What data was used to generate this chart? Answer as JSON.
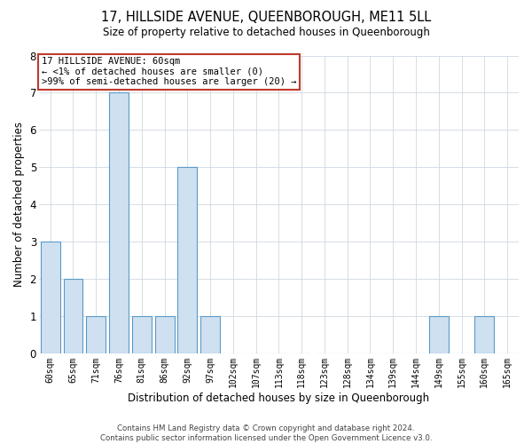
{
  "title": "17, HILLSIDE AVENUE, QUEENBOROUGH, ME11 5LL",
  "subtitle": "Size of property relative to detached houses in Queenborough",
  "xlabel": "Distribution of detached houses by size in Queenborough",
  "ylabel": "Number of detached properties",
  "categories": [
    "60sqm",
    "65sqm",
    "71sqm",
    "76sqm",
    "81sqm",
    "86sqm",
    "92sqm",
    "97sqm",
    "102sqm",
    "107sqm",
    "113sqm",
    "118sqm",
    "123sqm",
    "128sqm",
    "134sqm",
    "139sqm",
    "144sqm",
    "149sqm",
    "155sqm",
    "160sqm",
    "165sqm"
  ],
  "values": [
    3,
    2,
    1,
    7,
    1,
    1,
    5,
    1,
    0,
    0,
    0,
    0,
    0,
    0,
    0,
    0,
    0,
    1,
    0,
    1,
    0
  ],
  "bar_color": "#cfe0f0",
  "bar_edge_color": "#5a9ac8",
  "grid_color": "#d0d8e0",
  "background_color": "#ffffff",
  "ylim": [
    0,
    8
  ],
  "yticks": [
    0,
    1,
    2,
    3,
    4,
    5,
    6,
    7,
    8
  ],
  "annotation_title": "17 HILLSIDE AVENUE: 60sqm",
  "annotation_line1": "← <1% of detached houses are smaller (0)",
  "annotation_line2": ">99% of semi-detached houses are larger (20) →",
  "annotation_box_edge": "#c0392b",
  "footer_line1": "Contains HM Land Registry data © Crown copyright and database right 2024.",
  "footer_line2": "Contains public sector information licensed under the Open Government Licence v3.0."
}
